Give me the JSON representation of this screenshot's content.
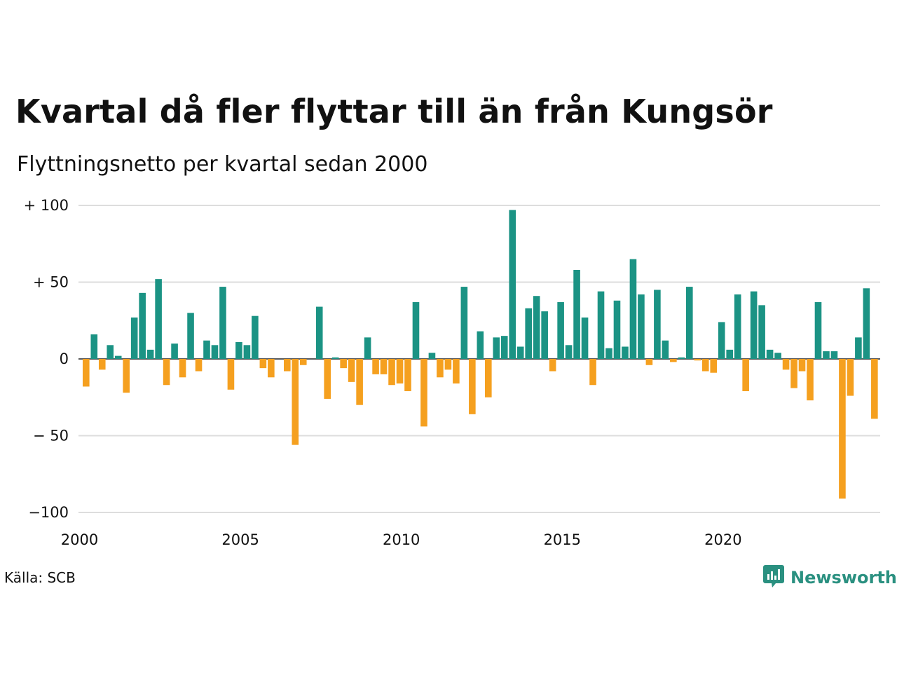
{
  "title": "Kvartal då fler flyttar till än från Kungsör",
  "subtitle": "Flyttningsnetto per kvartal sedan 2000",
  "source": "Källa: SCB",
  "brand": {
    "name": "Newsworthy",
    "icon": "newsworthy-logo-icon",
    "color": "#2a9080"
  },
  "colors": {
    "positive": "#1b9384",
    "negative": "#f5a01f",
    "grid": "#dddddd"
  },
  "chart_data": {
    "type": "bar",
    "title": "Kvartal då fler flyttar till än från Kungsör",
    "subtitle": "Flyttningsnetto per kvartal sedan 2000",
    "ylim": [
      -100,
      100
    ],
    "yticks": [
      100,
      50,
      0,
      -50,
      -100
    ],
    "ytick_labels": [
      "+ 100",
      "+  50",
      "0",
      "− 50",
      "−100"
    ],
    "xticks": [
      2000,
      2005,
      2010,
      2015,
      2020
    ],
    "xtick_labels": [
      "2000",
      "2005",
      "2010",
      "2015",
      "2020"
    ],
    "start": "2000 Q1",
    "grid": true,
    "values": [
      -18,
      16,
      -7,
      9,
      2,
      -22,
      27,
      43,
      6,
      52,
      -17,
      10,
      -12,
      30,
      -8,
      12,
      9,
      47,
      -20,
      11,
      9,
      28,
      -6,
      -12,
      0,
      -8,
      -56,
      -4,
      0,
      34,
      -26,
      1,
      -6,
      -15,
      -30,
      14,
      -10,
      -10,
      -17,
      -16,
      -21,
      37,
      -44,
      4,
      -12,
      -7,
      -16,
      47,
      -36,
      18,
      -25,
      14,
      15,
      97,
      8,
      33,
      41,
      31,
      -8,
      37,
      9,
      58,
      27,
      -17,
      44,
      7,
      38,
      8,
      65,
      42,
      -4,
      45,
      12,
      -2,
      1,
      47,
      -1,
      -8,
      -9,
      24,
      6,
      42,
      -21,
      44,
      35,
      6,
      4,
      -7,
      -19,
      -8,
      -27,
      37,
      5,
      5,
      -91,
      -24,
      14,
      46,
      -39
    ]
  }
}
